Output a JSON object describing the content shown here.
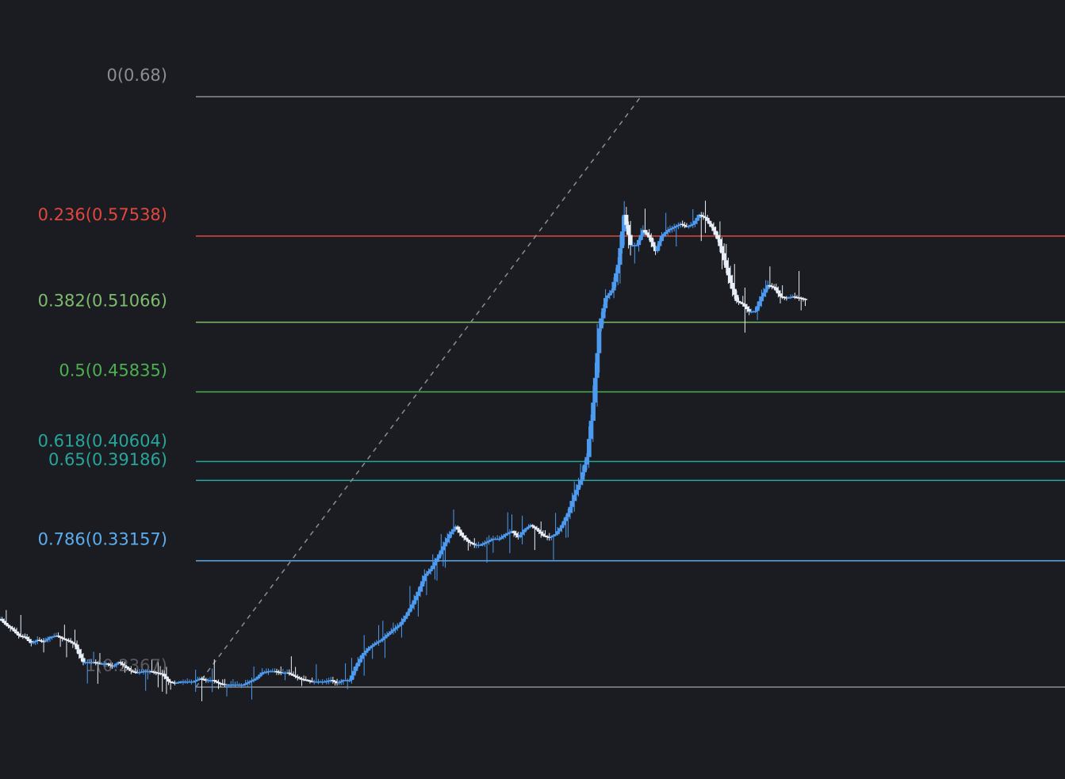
{
  "chart_data": {
    "type": "candlestick",
    "colors": {
      "background": "#1b1c21",
      "up_candle": "#4c9bf0",
      "down_candle": "#e8eef8",
      "trend_line": "#8a8d94"
    },
    "fib_levels": [
      {
        "label": "0(0.68)",
        "ratio": 0,
        "price": 0.68,
        "color": "#8a8d94"
      },
      {
        "label": "0.236(0.57538)",
        "ratio": 0.236,
        "price": 0.57538,
        "color": "#e0473e"
      },
      {
        "label": "0.382(0.51066)",
        "ratio": 0.382,
        "price": 0.51066,
        "color": "#7dbb6e"
      },
      {
        "label": "0.5(0.45835)",
        "ratio": 0.5,
        "price": 0.45835,
        "color": "#4caf50"
      },
      {
        "label": "0.618(0.40604)",
        "ratio": 0.618,
        "price": 0.40604,
        "color": "#26a69a"
      },
      {
        "label": "0.65(0.39186)",
        "ratio": 0.65,
        "price": 0.39186,
        "color": "#26a69a"
      },
      {
        "label": "0.786(0.33157)",
        "ratio": 0.786,
        "price": 0.33157,
        "color": "#5aaef0"
      },
      {
        "label": "1(0.2367)",
        "ratio": 1,
        "price": 0.2367,
        "color": "#8a8d94"
      }
    ],
    "close_path": [
      [
        0,
        0.2879
      ],
      [
        3,
        0.2834
      ],
      [
        6,
        0.28
      ],
      [
        9,
        0.2754
      ],
      [
        12,
        0.2743
      ],
      [
        15,
        0.2697
      ],
      [
        18,
        0.2721
      ],
      [
        21,
        0.2709
      ],
      [
        24,
        0.2743
      ],
      [
        27,
        0.2754
      ],
      [
        30,
        0.2732
      ],
      [
        33,
        0.2714
      ],
      [
        36,
        0.2686
      ],
      [
        38,
        0.2615
      ],
      [
        40,
        0.2555
      ],
      [
        42,
        0.2555
      ],
      [
        45,
        0.2555
      ],
      [
        48,
        0.2544
      ],
      [
        51,
        0.2544
      ],
      [
        54,
        0.2521
      ],
      [
        57,
        0.2555
      ],
      [
        60,
        0.2521
      ],
      [
        63,
        0.2487
      ],
      [
        66,
        0.2476
      ],
      [
        69,
        0.2487
      ],
      [
        72,
        0.2487
      ],
      [
        75,
        0.2476
      ],
      [
        78,
        0.2466
      ],
      [
        81,
        0.2409
      ],
      [
        84,
        0.2397
      ],
      [
        87,
        0.2409
      ],
      [
        90,
        0.2409
      ],
      [
        93,
        0.2409
      ],
      [
        96,
        0.2431
      ],
      [
        99,
        0.242
      ],
      [
        102,
        0.242
      ],
      [
        105,
        0.2397
      ],
      [
        108,
        0.2386
      ],
      [
        111,
        0.2386
      ],
      [
        114,
        0.2386
      ],
      [
        117,
        0.2386
      ],
      [
        120,
        0.2409
      ],
      [
        123,
        0.2431
      ],
      [
        126,
        0.2476
      ],
      [
        129,
        0.2487
      ],
      [
        132,
        0.2487
      ],
      [
        135,
        0.2476
      ],
      [
        138,
        0.2476
      ],
      [
        141,
        0.2453
      ],
      [
        144,
        0.2431
      ],
      [
        147,
        0.242
      ],
      [
        150,
        0.2409
      ],
      [
        153,
        0.2409
      ],
      [
        156,
        0.2409
      ],
      [
        159,
        0.242
      ],
      [
        162,
        0.2397
      ],
      [
        165,
        0.242
      ],
      [
        168,
        0.242
      ],
      [
        171,
        0.2522
      ],
      [
        174,
        0.2607
      ],
      [
        177,
        0.2658
      ],
      [
        180,
        0.2692
      ],
      [
        183,
        0.2719
      ],
      [
        186,
        0.2759
      ],
      [
        189,
        0.2799
      ],
      [
        192,
        0.2834
      ],
      [
        195,
        0.2902
      ],
      [
        198,
        0.2987
      ],
      [
        201,
        0.3083
      ],
      [
        204,
        0.3202
      ],
      [
        207,
        0.3253
      ],
      [
        210,
        0.3333
      ],
      [
        213,
        0.3424
      ],
      [
        216,
        0.3515
      ],
      [
        219,
        0.3572
      ],
      [
        222,
        0.3504
      ],
      [
        225,
        0.3458
      ],
      [
        228,
        0.3436
      ],
      [
        231,
        0.3436
      ],
      [
        234,
        0.3458
      ],
      [
        237,
        0.3481
      ],
      [
        240,
        0.3481
      ],
      [
        243,
        0.3515
      ],
      [
        246,
        0.3538
      ],
      [
        249,
        0.3492
      ],
      [
        252,
        0.3549
      ],
      [
        255,
        0.3583
      ],
      [
        258,
        0.3549
      ],
      [
        261,
        0.3504
      ],
      [
        264,
        0.3492
      ],
      [
        267,
        0.3515
      ],
      [
        270,
        0.3583
      ],
      [
        273,
        0.3674
      ],
      [
        276,
        0.381
      ],
      [
        279,
        0.3924
      ],
      [
        282,
        0.4094
      ],
      [
        285,
        0.4503
      ],
      [
        288,
        0.506
      ],
      [
        291,
        0.5288
      ],
      [
        294,
        0.5345
      ],
      [
        297,
        0.5538
      ],
      [
        300,
        0.5913
      ],
      [
        303,
        0.5686
      ],
      [
        306,
        0.5686
      ],
      [
        309,
        0.5799
      ],
      [
        312,
        0.5743
      ],
      [
        315,
        0.564
      ],
      [
        318,
        0.5754
      ],
      [
        321,
        0.5799
      ],
      [
        324,
        0.5822
      ],
      [
        327,
        0.5845
      ],
      [
        330,
        0.5822
      ],
      [
        333,
        0.5845
      ],
      [
        336,
        0.5913
      ],
      [
        339,
        0.589
      ],
      [
        342,
        0.5822
      ],
      [
        345,
        0.5731
      ],
      [
        348,
        0.5572
      ],
      [
        351,
        0.5402
      ],
      [
        354,
        0.5266
      ],
      [
        357,
        0.5243
      ],
      [
        360,
        0.5186
      ],
      [
        363,
        0.5191
      ],
      [
        366,
        0.53
      ],
      [
        369,
        0.5385
      ],
      [
        372,
        0.5368
      ],
      [
        375,
        0.53
      ],
      [
        378,
        0.529
      ],
      [
        381,
        0.53
      ],
      [
        384,
        0.529
      ],
      [
        387,
        0.5278
      ]
    ],
    "chart_note": "close_path = [bar index, price]; the 0 and 1 levels are the swing high and swing low of the drawn Fibonacci retracement"
  }
}
